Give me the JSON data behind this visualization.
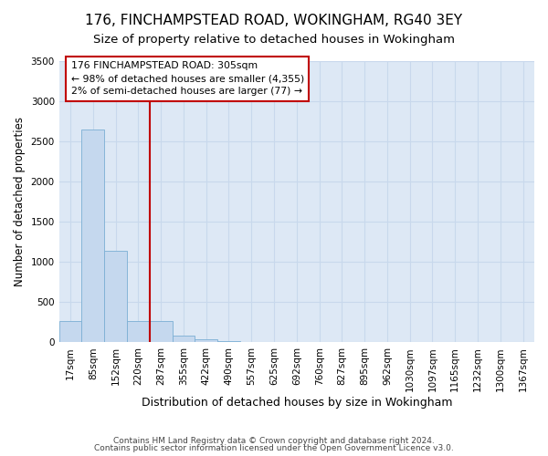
{
  "title1": "176, FINCHAMPSTEAD ROAD, WOKINGHAM, RG40 3EY",
  "title2": "Size of property relative to detached houses in Wokingham",
  "xlabel": "Distribution of detached houses by size in Wokingham",
  "ylabel": "Number of detached properties",
  "footer1": "Contains HM Land Registry data © Crown copyright and database right 2024.",
  "footer2": "Contains public sector information licensed under the Open Government Licence v3.0.",
  "bar_labels": [
    "17sqm",
    "85sqm",
    "152sqm",
    "220sqm",
    "287sqm",
    "355sqm",
    "422sqm",
    "490sqm",
    "557sqm",
    "625sqm",
    "692sqm",
    "760sqm",
    "827sqm",
    "895sqm",
    "962sqm",
    "1030sqm",
    "1097sqm",
    "1165sqm",
    "1232sqm",
    "1300sqm",
    "1367sqm"
  ],
  "bar_values": [
    270,
    2640,
    1140,
    270,
    270,
    80,
    40,
    10,
    0,
    0,
    0,
    0,
    0,
    0,
    0,
    0,
    0,
    0,
    0,
    0,
    0
  ],
  "bar_color": "#c5d8ee",
  "bar_edge_color": "#7bafd4",
  "ylim": [
    0,
    3500
  ],
  "yticks": [
    0,
    500,
    1000,
    1500,
    2000,
    2500,
    3000,
    3500
  ],
  "vline_color": "#c00000",
  "annotation_text": "176 FINCHAMPSTEAD ROAD: 305sqm\n← 98% of detached houses are smaller (4,355)\n2% of semi-detached houses are larger (77) →",
  "grid_color": "#c8d8ec",
  "bg_color": "#dde8f5",
  "title1_fontsize": 11,
  "title2_fontsize": 9.5,
  "xlabel_fontsize": 9,
  "ylabel_fontsize": 8.5,
  "tick_fontsize": 7.5,
  "footer_fontsize": 6.5
}
